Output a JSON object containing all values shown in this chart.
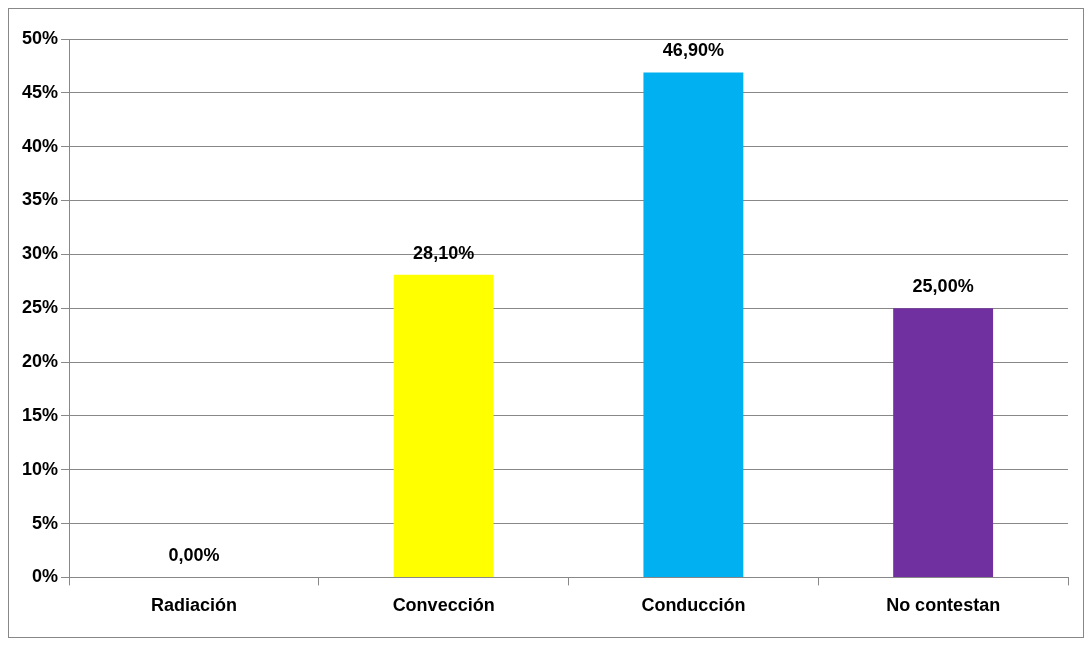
{
  "chart_data": {
    "type": "bar",
    "categories": [
      "Radiación",
      "Convección",
      "Conducción",
      "No contestan"
    ],
    "values": [
      0,
      28.1,
      46.9,
      25
    ],
    "colors": [
      "#00b050",
      "#ffff00",
      "#00b0f0",
      "#7030a0"
    ],
    "value_labels": [
      "0,00%",
      "28,10%",
      "46,90%",
      "25,00%"
    ],
    "ylim": [
      0,
      50
    ],
    "yticks": [
      {
        "value": 0,
        "label": "0%"
      },
      {
        "value": 5,
        "label": "5%"
      },
      {
        "value": 10,
        "label": "10%"
      },
      {
        "value": 15,
        "label": "15%"
      },
      {
        "value": 20,
        "label": "20%"
      },
      {
        "value": 25,
        "label": "25%"
      },
      {
        "value": 30,
        "label": "30%"
      },
      {
        "value": 35,
        "label": "35%"
      },
      {
        "value": 40,
        "label": "40%"
      },
      {
        "value": 45,
        "label": "45%"
      },
      {
        "value": 50,
        "label": "50%"
      }
    ],
    "grid": "y",
    "legend": false
  }
}
